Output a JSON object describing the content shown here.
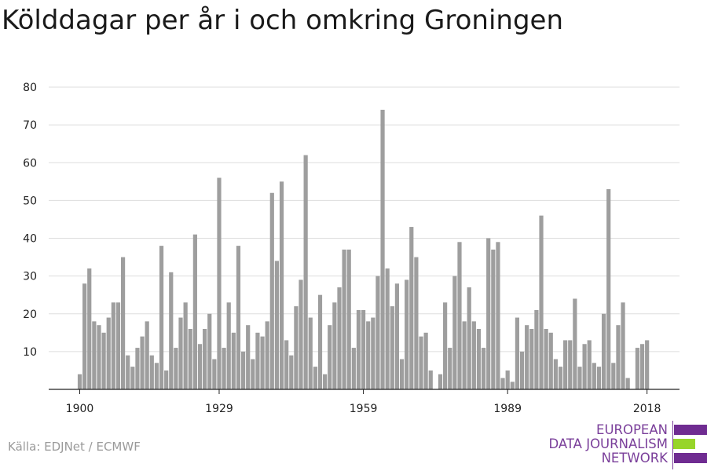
{
  "title": "Kölddagar per år i och omkring Groningen",
  "source": "Källa: EDJNet / ECMWF",
  "logo": {
    "line1": "EUROPEAN",
    "line2": "DATA JOURNALISM",
    "line3": "NETWORK"
  },
  "colors": {
    "bar": "#9e9e9e",
    "grid": "#dddddd",
    "axis": "#222222",
    "logo_purple": "#6f2c91",
    "logo_green": "#97d52a"
  },
  "chart_data": {
    "type": "bar",
    "ylim": [
      0,
      80
    ],
    "y_ticks": [
      10,
      20,
      30,
      40,
      50,
      60,
      70,
      80
    ],
    "x_ticks": [
      1900,
      1929,
      1959,
      1989,
      2018
    ],
    "x": [
      1900,
      1901,
      1902,
      1903,
      1904,
      1905,
      1906,
      1907,
      1908,
      1909,
      1910,
      1911,
      1912,
      1913,
      1914,
      1915,
      1916,
      1917,
      1918,
      1919,
      1920,
      1921,
      1922,
      1923,
      1924,
      1925,
      1926,
      1927,
      1928,
      1929,
      1930,
      1931,
      1932,
      1933,
      1934,
      1935,
      1936,
      1937,
      1938,
      1939,
      1940,
      1941,
      1942,
      1943,
      1944,
      1945,
      1946,
      1947,
      1948,
      1949,
      1950,
      1951,
      1952,
      1953,
      1954,
      1955,
      1956,
      1957,
      1958,
      1959,
      1960,
      1961,
      1962,
      1963,
      1964,
      1965,
      1966,
      1967,
      1968,
      1969,
      1970,
      1971,
      1972,
      1973,
      1974,
      1975,
      1976,
      1977,
      1978,
      1979,
      1980,
      1981,
      1982,
      1983,
      1984,
      1985,
      1986,
      1987,
      1988,
      1989,
      1990,
      1991,
      1992,
      1993,
      1994,
      1995,
      1996,
      1997,
      1998,
      1999,
      2000,
      2001,
      2002,
      2003,
      2004,
      2005,
      2006,
      2007,
      2008,
      2009,
      2010,
      2011,
      2012,
      2013,
      2014,
      2015,
      2016,
      2017,
      2018
    ],
    "values": [
      4,
      28,
      32,
      18,
      17,
      15,
      19,
      23,
      23,
      35,
      9,
      6,
      11,
      14,
      18,
      9,
      7,
      38,
      5,
      31,
      11,
      19,
      23,
      16,
      41,
      12,
      16,
      20,
      8,
      56,
      11,
      23,
      15,
      38,
      10,
      17,
      8,
      15,
      14,
      18,
      52,
      34,
      55,
      13,
      9,
      22,
      29,
      62,
      19,
      6,
      25,
      4,
      17,
      23,
      27,
      37,
      37,
      11,
      21,
      21,
      18,
      19,
      30,
      74,
      32,
      22,
      28,
      8,
      29,
      43,
      35,
      14,
      15,
      5,
      0,
      4,
      23,
      11,
      30,
      39,
      18,
      27,
      18,
      16,
      11,
      40,
      37,
      39,
      3,
      5,
      2,
      19,
      10,
      17,
      16,
      21,
      46,
      16,
      15,
      8,
      6,
      13,
      13,
      24,
      6,
      12,
      13,
      7,
      6,
      20,
      53,
      7,
      17,
      23,
      3,
      0,
      11,
      12,
      13
    ]
  }
}
